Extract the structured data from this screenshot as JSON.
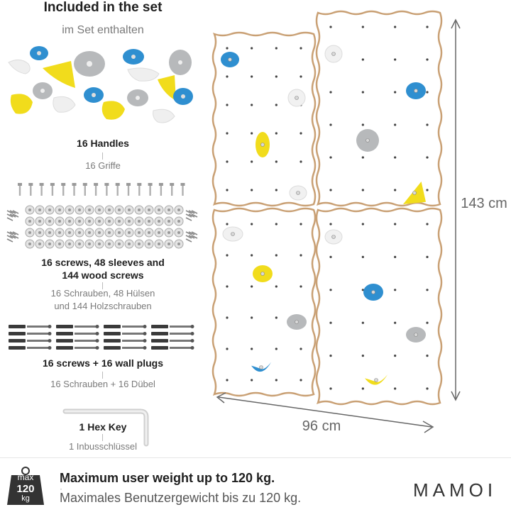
{
  "set": {
    "title_en": "Included in the set",
    "title_de": "im Set enthalten"
  },
  "items": [
    {
      "name_en": "16 Handles",
      "name_de": "16 Griffe"
    },
    {
      "name_en_line1": "16 screws, 48 sleeves and",
      "name_en_line2": "144 wood screws",
      "name_de_line1": "16 Schrauben, 48 Hülsen",
      "name_de_line2": "und 144 Holzschrauben"
    },
    {
      "name_en": "16 screws + 16 wall plugs",
      "name_de": "16 Schrauben + 16 Dübel"
    },
    {
      "name_en": "1 Hex Key",
      "name_de": "1 Inbusschlüssel"
    }
  ],
  "dimensions": {
    "height": "143 cm",
    "width": "96 cm"
  },
  "weight": {
    "icon_max": "max",
    "icon_value": "120",
    "icon_unit": "kg",
    "text_en": "Maximum user weight up to 120 kg.",
    "text_de": "Maximales Benutzergewicht bis zu 120 kg."
  },
  "brand": {
    "logo": "MAMOI"
  },
  "colors": {
    "blue": "#2f8fd0",
    "yellow": "#f1dc1c",
    "grey": "#b7b9bb",
    "white_hold": "#f1f1f1",
    "panel_edge": "#c9a074"
  }
}
